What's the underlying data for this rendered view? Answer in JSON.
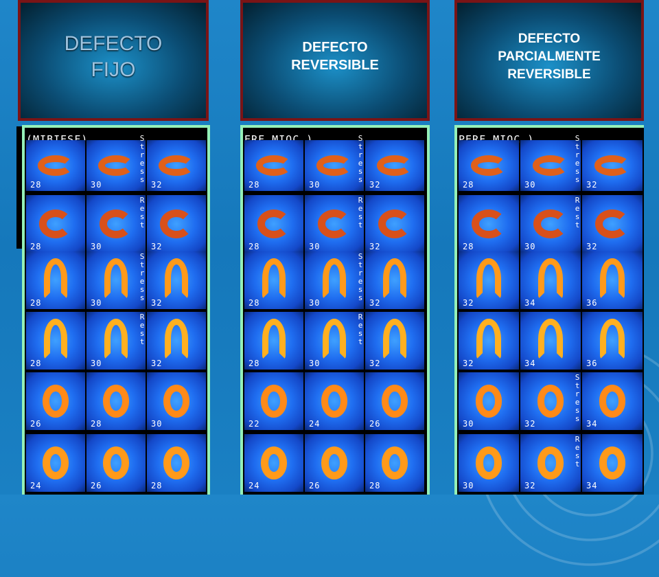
{
  "headers": [
    {
      "title": "DEFECTO\nFIJO"
    },
    {
      "title": "DEFECTO\nREVERSIBLE"
    },
    {
      "title": "DEFECTO\nPARCIALMENTE\nREVERSIBLE"
    }
  ],
  "panels": [
    {
      "top_text": "(MIBIESF)",
      "labels": {
        "stress": "Stress",
        "rest": "Rest"
      },
      "rows": [
        [
          "28",
          "30",
          "32"
        ],
        [
          "28",
          "30",
          "32"
        ],
        [
          "28",
          "30",
          "32"
        ],
        [
          "28",
          "30",
          "32"
        ],
        [
          "26",
          "28",
          "30"
        ],
        [
          "24",
          "26",
          "28"
        ]
      ]
    },
    {
      "top_text": "ERF.MIOC.)",
      "labels": {
        "stress": "Stress",
        "rest": "Rest"
      },
      "rows": [
        [
          "28",
          "30",
          "32"
        ],
        [
          "28",
          "30",
          "32"
        ],
        [
          "28",
          "30",
          "32"
        ],
        [
          "28",
          "30",
          "32"
        ],
        [
          "22",
          "24",
          "26"
        ],
        [
          "24",
          "26",
          "28"
        ]
      ]
    },
    {
      "top_text": "PERF.MIOC.)",
      "labels": {
        "stress": "Stress",
        "rest": "Rest"
      },
      "rows": [
        [
          "28",
          "30",
          "32"
        ],
        [
          "28",
          "30",
          "32"
        ],
        [
          "32",
          "34",
          "36"
        ],
        [
          "32",
          "34",
          "36"
        ],
        [
          "30",
          "32",
          "34"
        ],
        [
          "30",
          "32",
          "34"
        ]
      ]
    }
  ]
}
